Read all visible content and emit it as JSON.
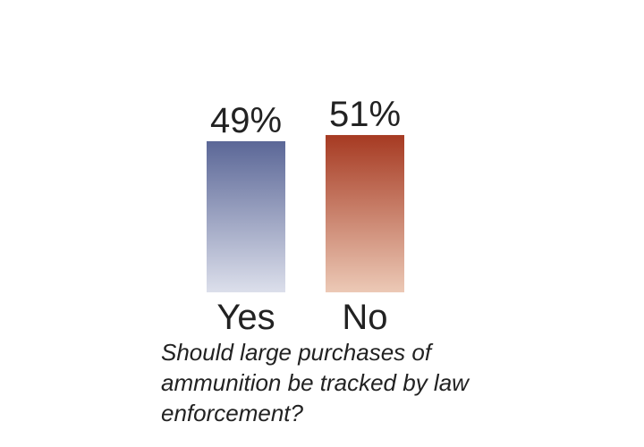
{
  "chart_data": {
    "type": "bar",
    "categories": [
      "Yes",
      "No"
    ],
    "values": [
      49,
      51
    ],
    "value_labels": [
      "49%",
      "51%"
    ],
    "unit": "%",
    "colors": [
      "#5b6797",
      "#a63a22"
    ],
    "color_fade_to": [
      "#dcdfeb",
      "#ecc9b6"
    ],
    "gradient": "top-to-bottom fade",
    "grid": false,
    "legend": "none",
    "title": "",
    "caption": "Should large purchases of ammunition be tracked by law enforcement?"
  }
}
